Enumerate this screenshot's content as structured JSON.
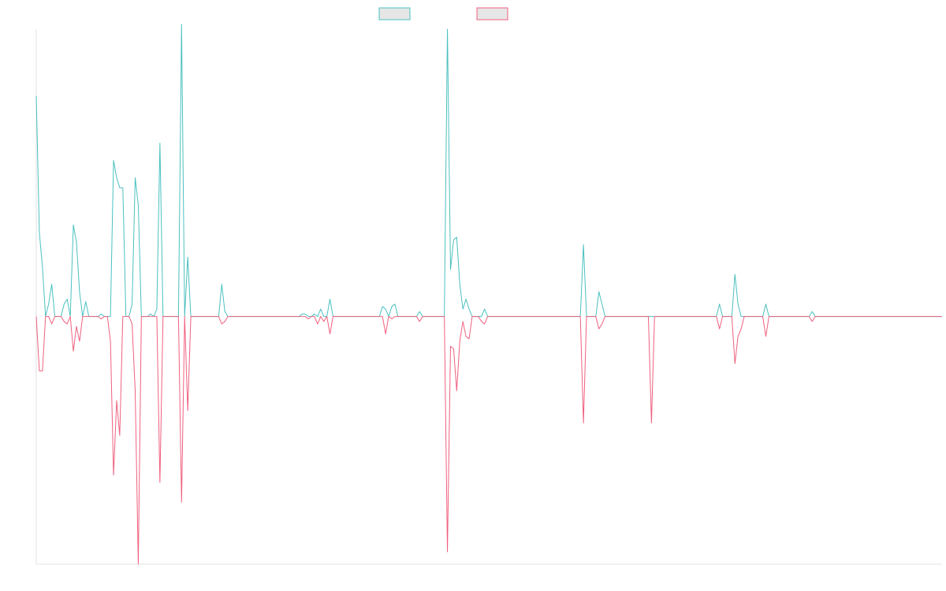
{
  "chart_data": {
    "type": "line",
    "title": "",
    "xlabel": "",
    "ylabel": "",
    "x_count": 294,
    "ylim": [
      -1,
      1.16
    ],
    "grid": false,
    "legend_position": "top-center",
    "baseline": 0,
    "series": [
      {
        "color": "#4bc0c0",
        "fill": "#e6e6e6",
        "sparse_values": [
          [
            0,
            0.89
          ],
          [
            1,
            0.34
          ],
          [
            2,
            0.2
          ],
          [
            3,
            0
          ],
          [
            4,
            0.05
          ],
          [
            5,
            0.13
          ],
          [
            6,
            0
          ],
          [
            7,
            0
          ],
          [
            8,
            0
          ],
          [
            9,
            0.05
          ],
          [
            10,
            0.07
          ],
          [
            11,
            0
          ],
          [
            12,
            0.37
          ],
          [
            13,
            0.3
          ],
          [
            14,
            0.1
          ],
          [
            15,
            0
          ],
          [
            16,
            0.06
          ],
          [
            17,
            0
          ],
          [
            18,
            0
          ],
          [
            19,
            0
          ],
          [
            20,
            0
          ],
          [
            21,
            0.01
          ],
          [
            22,
            0
          ],
          [
            23,
            0
          ],
          [
            24,
            0
          ],
          [
            25,
            0.63
          ],
          [
            26,
            0.56
          ],
          [
            27,
            0.52
          ],
          [
            28,
            0.52
          ],
          [
            29,
            0
          ],
          [
            30,
            0
          ],
          [
            31,
            0.05
          ],
          [
            32,
            0.56
          ],
          [
            33,
            0.45
          ],
          [
            34,
            0
          ],
          [
            35,
            0
          ],
          [
            36,
            0
          ],
          [
            37,
            0.01
          ],
          [
            38,
            0
          ],
          [
            39,
            0.03
          ],
          [
            40,
            0.7
          ],
          [
            41,
            0
          ],
          [
            42,
            0
          ],
          [
            43,
            0
          ],
          [
            44,
            0
          ],
          [
            45,
            0
          ],
          [
            46,
            0
          ],
          [
            47,
            1.18
          ],
          [
            48,
            0
          ],
          [
            49,
            0.24
          ],
          [
            50,
            0
          ],
          [
            60,
            0.13
          ],
          [
            61,
            0.02
          ],
          [
            62,
            0
          ],
          [
            86,
            0.01
          ],
          [
            87,
            0.01
          ],
          [
            88,
            0
          ],
          [
            89,
            0
          ],
          [
            90,
            0.01
          ],
          [
            91,
            0
          ],
          [
            92,
            0.03
          ],
          [
            93,
            0
          ],
          [
            94,
            0
          ],
          [
            95,
            0.07
          ],
          [
            96,
            0
          ],
          [
            112,
            0.04
          ],
          [
            113,
            0.03
          ],
          [
            114,
            0
          ],
          [
            115,
            0.04
          ],
          [
            116,
            0.05
          ],
          [
            117,
            0
          ],
          [
            123,
            0
          ],
          [
            124,
            0.02
          ],
          [
            125,
            0
          ],
          [
            133,
            1.16
          ],
          [
            134,
            0.19
          ],
          [
            135,
            0.31
          ],
          [
            136,
            0.32
          ],
          [
            137,
            0.13
          ],
          [
            138,
            0.03
          ],
          [
            139,
            0.07
          ],
          [
            140,
            0.03
          ],
          [
            141,
            0
          ],
          [
            142,
            0
          ],
          [
            143,
            0
          ],
          [
            144,
            0
          ],
          [
            145,
            0.03
          ],
          [
            146,
            0
          ],
          [
            147,
            0
          ],
          [
            148,
            0
          ],
          [
            176,
            0
          ],
          [
            177,
            0.29
          ],
          [
            178,
            0
          ],
          [
            179,
            0
          ],
          [
            181,
            0
          ],
          [
            182,
            0.1
          ],
          [
            183,
            0.05
          ],
          [
            184,
            0
          ],
          [
            185,
            0
          ],
          [
            220,
            0
          ],
          [
            221,
            0.05
          ],
          [
            222,
            0
          ],
          [
            225,
            0
          ],
          [
            226,
            0.17
          ],
          [
            227,
            0.05
          ],
          [
            228,
            0
          ],
          [
            235,
            0
          ],
          [
            236,
            0.05
          ],
          [
            237,
            0
          ],
          [
            250,
            0
          ],
          [
            251,
            0.02
          ],
          [
            252,
            0
          ],
          [
            293,
            0
          ]
        ]
      },
      {
        "color": "#f0607f",
        "fill": "#e6e6e6",
        "sparse_values": [
          [
            0,
            0
          ],
          [
            1,
            -0.22
          ],
          [
            2,
            -0.22
          ],
          [
            3,
            0
          ],
          [
            4,
            0
          ],
          [
            5,
            -0.03
          ],
          [
            6,
            0
          ],
          [
            7,
            0
          ],
          [
            8,
            0
          ],
          [
            9,
            -0.02
          ],
          [
            10,
            -0.03
          ],
          [
            11,
            0
          ],
          [
            12,
            -0.14
          ],
          [
            13,
            -0.04
          ],
          [
            14,
            -0.1
          ],
          [
            15,
            0
          ],
          [
            16,
            0
          ],
          [
            17,
            0
          ],
          [
            18,
            0
          ],
          [
            19,
            0
          ],
          [
            20,
            0
          ],
          [
            21,
            -0.01
          ],
          [
            22,
            0
          ],
          [
            23,
            0
          ],
          [
            24,
            -0.1
          ],
          [
            25,
            -0.64
          ],
          [
            26,
            -0.34
          ],
          [
            27,
            -0.48
          ],
          [
            28,
            0
          ],
          [
            29,
            0
          ],
          [
            30,
            0
          ],
          [
            31,
            -0.03
          ],
          [
            32,
            -0.3
          ],
          [
            33,
            -1
          ],
          [
            34,
            0
          ],
          [
            35,
            0
          ],
          [
            36,
            0
          ],
          [
            37,
            0
          ],
          [
            38,
            0
          ],
          [
            39,
            0
          ],
          [
            40,
            -0.67
          ],
          [
            41,
            0
          ],
          [
            42,
            0
          ],
          [
            43,
            0
          ],
          [
            44,
            0
          ],
          [
            45,
            0
          ],
          [
            46,
            0
          ],
          [
            47,
            -0.75
          ],
          [
            48,
            0
          ],
          [
            49,
            -0.38
          ],
          [
            50,
            0
          ],
          [
            60,
            -0.03
          ],
          [
            61,
            -0.02
          ],
          [
            62,
            0
          ],
          [
            86,
            0
          ],
          [
            87,
            0
          ],
          [
            88,
            -0.01
          ],
          [
            89,
            0
          ],
          [
            90,
            0
          ],
          [
            91,
            -0.03
          ],
          [
            92,
            0
          ],
          [
            93,
            -0.02
          ],
          [
            94,
            0
          ],
          [
            95,
            -0.07
          ],
          [
            96,
            0
          ],
          [
            112,
            0
          ],
          [
            113,
            -0.07
          ],
          [
            114,
            0
          ],
          [
            115,
            -0.01
          ],
          [
            116,
            0
          ],
          [
            117,
            0
          ],
          [
            123,
            0
          ],
          [
            124,
            -0.02
          ],
          [
            125,
            0
          ],
          [
            133,
            -0.95
          ],
          [
            134,
            -0.12
          ],
          [
            135,
            -0.13
          ],
          [
            136,
            -0.3
          ],
          [
            137,
            -0.1
          ],
          [
            138,
            -0.02
          ],
          [
            139,
            -0.08
          ],
          [
            140,
            -0.09
          ],
          [
            141,
            0
          ],
          [
            142,
            0
          ],
          [
            143,
            0
          ],
          [
            144,
            -0.02
          ],
          [
            145,
            -0.03
          ],
          [
            146,
            0
          ],
          [
            147,
            0
          ],
          [
            148,
            0
          ],
          [
            176,
            0
          ],
          [
            177,
            -0.43
          ],
          [
            178,
            0
          ],
          [
            179,
            0
          ],
          [
            181,
            0
          ],
          [
            182,
            -0.05
          ],
          [
            183,
            -0.03
          ],
          [
            184,
            0
          ],
          [
            185,
            0
          ],
          [
            198,
            0
          ],
          [
            199,
            -0.43
          ],
          [
            200,
            0
          ],
          [
            220,
            0
          ],
          [
            221,
            -0.05
          ],
          [
            222,
            0
          ],
          [
            225,
            0
          ],
          [
            226,
            -0.19
          ],
          [
            227,
            -0.08
          ],
          [
            228,
            -0.05
          ],
          [
            229,
            0
          ],
          [
            235,
            0
          ],
          [
            236,
            -0.08
          ],
          [
            237,
            0
          ],
          [
            250,
            0
          ],
          [
            251,
            -0.02
          ],
          [
            252,
            0
          ],
          [
            293,
            0
          ]
        ]
      }
    ]
  }
}
